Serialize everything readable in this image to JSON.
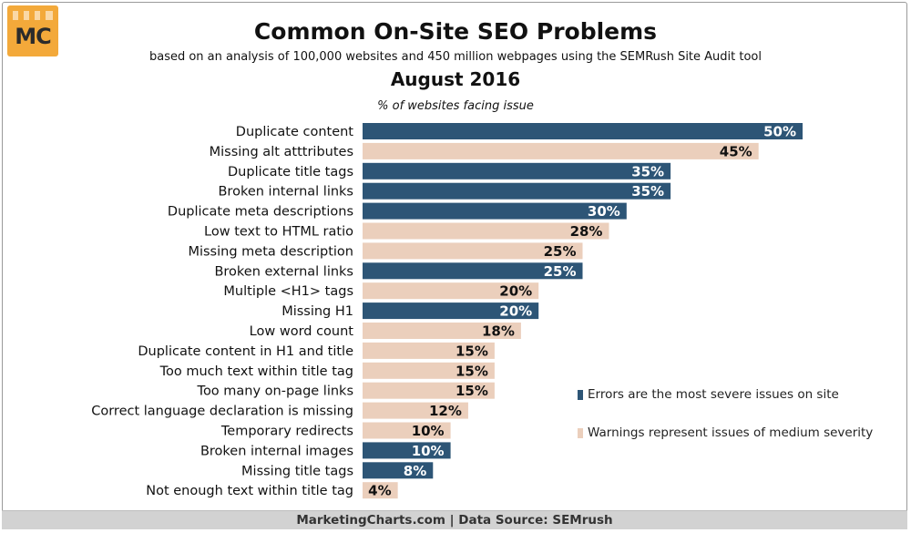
{
  "logo": {
    "text": "MC"
  },
  "header": {
    "title": "Common On-Site SEO Problems",
    "subtitle": "based on an analysis of 100,000 websites and 450 million webpages using the SEMRush Site Audit tool",
    "date": "August 2016",
    "unit_label": "% of websites facing issue"
  },
  "legend": {
    "errors": "Errors are the most severe issues on site",
    "warnings": "Warnings represent issues of medium severity"
  },
  "footer": {
    "source": "MarketingCharts.com | Data Source: SEMrush"
  },
  "colors": {
    "error": "#2d5576",
    "warning": "#ebcfbc",
    "error_text": "#ffffff",
    "warning_text": "#111111"
  },
  "chart_data": {
    "type": "bar",
    "orientation": "horizontal",
    "unit": "%",
    "categories": [
      "Duplicate content",
      "Missing alt atttributes",
      "Duplicate title tags",
      "Broken internal links",
      "Duplicate meta descriptions",
      "Low text to HTML ratio",
      "Missing meta description",
      "Broken external links",
      "Multiple <H1> tags",
      "Missing H1",
      "Low word count",
      "Duplicate content in H1 and title",
      "Too much text within title tag",
      "Too many on-page links",
      "Correct language declaration is missing",
      "Temporary redirects",
      "Broken internal images",
      "Missing title tags",
      "Not enough text within title tag"
    ],
    "values": [
      50,
      45,
      35,
      35,
      30,
      28,
      25,
      25,
      20,
      20,
      18,
      15,
      15,
      15,
      12,
      10,
      10,
      8,
      4
    ],
    "labels": [
      "50%",
      "45%",
      "35%",
      "35%",
      "30%",
      "28%",
      "25%",
      "25%",
      "20%",
      "20%",
      "18%",
      "15%",
      "15%",
      "15%",
      "12%",
      "10%",
      "10%",
      "8%",
      "4%"
    ],
    "severity": [
      "error",
      "warning",
      "error",
      "error",
      "error",
      "warning",
      "warning",
      "error",
      "warning",
      "error",
      "warning",
      "warning",
      "warning",
      "warning",
      "warning",
      "warning",
      "error",
      "error",
      "warning"
    ],
    "series": [
      {
        "name": "Errors are the most severe issues on site",
        "key": "error"
      },
      {
        "name": "Warnings represent issues of medium severity",
        "key": "warning"
      }
    ],
    "xlim": [
      0,
      50
    ],
    "grid": false,
    "legend_position": "right"
  }
}
